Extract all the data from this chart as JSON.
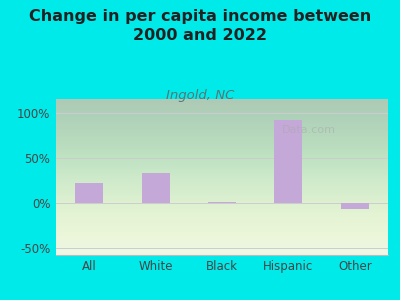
{
  "title": "Change in per capita income between\n2000 and 2022",
  "subtitle": "Ingold, NC",
  "categories": [
    "All",
    "White",
    "Black",
    "Hispanic",
    "Other"
  ],
  "values": [
    22,
    33,
    1,
    92,
    -7
  ],
  "bar_color": "#c4a8d8",
  "background_outer": "#00eaea",
  "background_plot": "#e8f5e4",
  "title_color": "#222222",
  "subtitle_color": "#557777",
  "axis_label_color": "#444444",
  "ylim": [
    -58,
    115
  ],
  "yticks": [
    -50,
    0,
    50,
    100
  ],
  "title_fontsize": 11.5,
  "subtitle_fontsize": 9.5,
  "tick_fontsize": 8.5,
  "watermark": "Data.com"
}
